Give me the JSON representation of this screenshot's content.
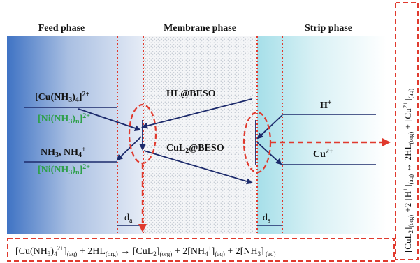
{
  "phases": {
    "feed": "Feed phase",
    "membrane": "Membrane phase",
    "strip": "Strip phase"
  },
  "feed_species": {
    "cu_ammine": "[Cu(NH3)4]2+",
    "ni_ammine_top": "[Ni(NH3)n]2+",
    "ammonia": "NH3, NH4+",
    "ni_ammine_bottom": "[Ni(NH3)n]2+"
  },
  "membrane_species": {
    "carrier": "HL@BESO",
    "complex": "CuL2@BESO"
  },
  "strip_species": {
    "proton": "H+",
    "copper": "Cu2+"
  },
  "boundary_layers": {
    "feed": "da",
    "strip": "ds"
  },
  "equations": {
    "extraction": "[Cu(NH3)42+](aq) + 2HL(org) → [CuL2](org) + 2[NH4+](aq) + 2[NH3](aq)",
    "stripping": "[CuL2](org) + 2[H+](aq) ↔ 2HL(org) + [Cu2+](aq)"
  },
  "colors": {
    "feed_gradient_dark": "#3f73c4",
    "feed_gradient_light": "#dfe7f3",
    "strip_gradient": "#b8e6ee",
    "dashed_red": "#e03a2e",
    "arrow_navy": "#1c2a6b",
    "ni_green": "#2ea04a"
  }
}
